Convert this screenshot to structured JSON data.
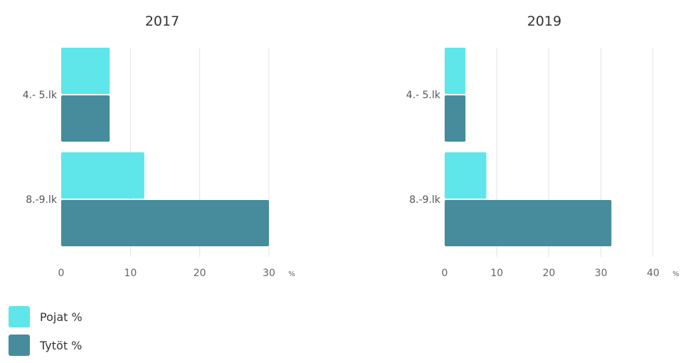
{
  "colors": {
    "pojat": "#5ee6ea",
    "tytot": "#468c9c",
    "grid": "#e3e3e3"
  },
  "legend": [
    {
      "label": "Pojat %",
      "color": "#5ee6ea"
    },
    {
      "label": "Tytöt %",
      "color": "#468c9c"
    }
  ],
  "chart_data": [
    {
      "type": "bar",
      "orientation": "horizontal",
      "title": "2017",
      "categories": [
        "4.- 5.lk",
        "8.-9.lk"
      ],
      "series": [
        {
          "name": "Pojat %",
          "values": [
            7,
            12
          ]
        },
        {
          "name": "Tytöt %",
          "values": [
            7,
            30
          ]
        }
      ],
      "xlim": [
        0,
        30
      ],
      "xticks": [
        0,
        10,
        20,
        30
      ],
      "xunit": "%",
      "grid": true
    },
    {
      "type": "bar",
      "orientation": "horizontal",
      "title": "2019",
      "categories": [
        "4.- 5.lk",
        "8.-9.lk"
      ],
      "series": [
        {
          "name": "Pojat %",
          "values": [
            4,
            8
          ]
        },
        {
          "name": "Tytöt %",
          "values": [
            4,
            32
          ]
        }
      ],
      "xlim": [
        0,
        40
      ],
      "xticks": [
        0,
        10,
        20,
        30,
        40
      ],
      "xunit": "%",
      "grid": true
    }
  ]
}
